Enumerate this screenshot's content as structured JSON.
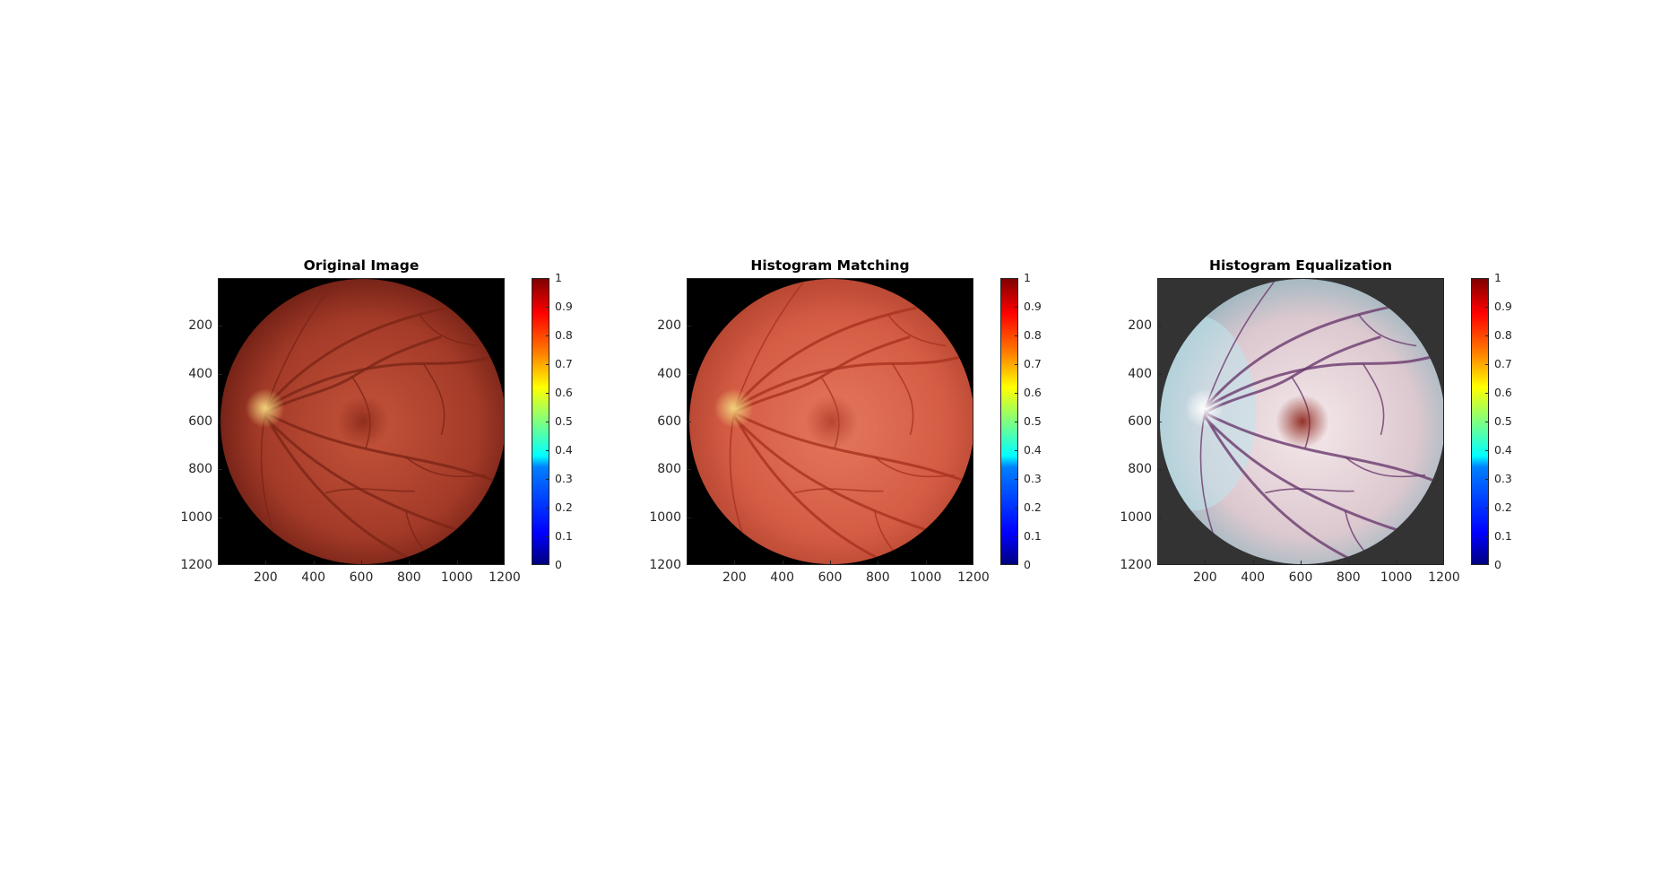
{
  "figures": [
    {
      "title": "Original Image",
      "variant": "original",
      "background": "#000000",
      "disc_colors": [
        "#c5543a",
        "#a33a28",
        "#6e1f14"
      ]
    },
    {
      "title": "Histogram Matching",
      "variant": "matched",
      "background": "#000000",
      "disc_colors": [
        "#e3775c",
        "#d45c44",
        "#b44430"
      ]
    },
    {
      "title": "Histogram Equalization",
      "variant": "equalized",
      "background": "#333333",
      "disc_colors": [
        "#f4e8ea",
        "#dcc8cf",
        "#9ab6bf"
      ]
    }
  ],
  "axes": {
    "y_ticks": [
      "200",
      "400",
      "600",
      "800",
      "1000",
      "1200"
    ],
    "x_ticks": [
      "200",
      "400",
      "600",
      "800",
      "1000",
      "1200"
    ],
    "colorbar_ticks": [
      "0",
      "0.1",
      "0.2",
      "0.3",
      "0.4",
      "0.5",
      "0.6",
      "0.7",
      "0.8",
      "0.9",
      "1"
    ],
    "x_range": [
      0,
      1200
    ],
    "y_range": [
      0,
      1200
    ],
    "colorbar_range": [
      0,
      1
    ],
    "colormap": "jet"
  }
}
